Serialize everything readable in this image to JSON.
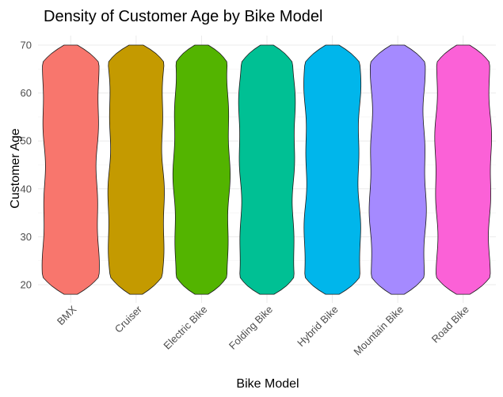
{
  "chart_data": {
    "type": "violin",
    "title": "Density of Customer Age by Bike Model",
    "xlabel": "Bike Model",
    "ylabel": "Customer Age",
    "ylim": [
      18,
      70
    ],
    "yticks": [
      20,
      30,
      40,
      50,
      60,
      70
    ],
    "grid": true,
    "legend": "none",
    "categories": [
      "BMX",
      "Cruiser",
      "Electric Bike",
      "Folding Bike",
      "Hybrid Bike",
      "Mountain Bike",
      "Road Bike"
    ],
    "colors": [
      "#F8766D",
      "#C49A00",
      "#53B400",
      "#00C094",
      "#00B6EB",
      "#A58AFF",
      "#FB61D7"
    ],
    "age_range": [
      18,
      70
    ]
  }
}
